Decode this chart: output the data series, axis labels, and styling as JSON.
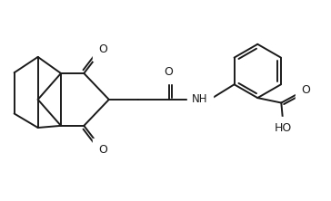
{
  "background_color": "#ffffff",
  "line_color": "#1a1a1a",
  "line_width": 1.4,
  "font_size": 8.5,
  "figsize": [
    3.64,
    2.22
  ],
  "dpi": 100,
  "xlim": [
    0,
    10
  ],
  "ylim": [
    0,
    6.1
  ]
}
